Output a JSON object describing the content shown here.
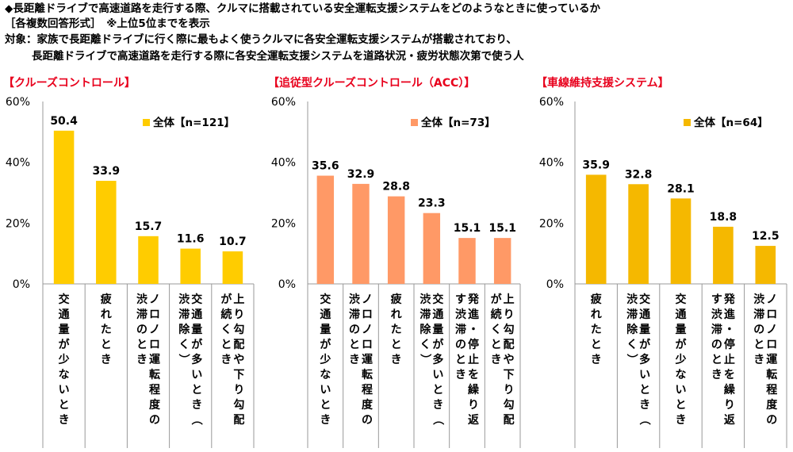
{
  "header": {
    "line1": "◆長距離ドライブで高速道路を走行する際、クルマに搭載されている安全運転支援システムをどのようなときに使っているか",
    "line2": "［各複数回答形式］　※上位5位までを表示",
    "line3": "対象：家族で長距離ドライブに行く際に最もよく使うクルマに各安全運転支援システムが搭載されており、",
    "line4": "長距離ドライブで高速道路を走行する際に各安全運転支援システムを道路状況・疲労状態次第で使う人"
  },
  "chart_data": [
    {
      "type": "bar",
      "title": "【クルーズコントロール】",
      "legend": "全体【n=121】",
      "color": "#FFCC00",
      "y_ticks": [
        "60%",
        "40%",
        "20%",
        "0%"
      ],
      "ylim": [
        0,
        60
      ],
      "categories": [
        "交通量が少ないとき",
        "疲れたとき",
        "ノロノロ運転程度の渋滞のとき",
        "交通量が多いとき（渋滞除く）",
        "上り勾配や下り勾配が続くとき"
      ],
      "values": [
        50.4,
        33.9,
        15.7,
        11.6,
        10.7
      ],
      "labels": [
        "50.4",
        "33.9",
        "15.7",
        "11.6",
        "10.7"
      ]
    },
    {
      "type": "bar",
      "title": "【追従型クルーズコントロール（ACC）】",
      "legend": "全体【n=73】",
      "color": "#FF9966",
      "y_ticks": [
        "60%",
        "40%",
        "20%",
        "0%"
      ],
      "ylim": [
        0,
        60
      ],
      "categories": [
        "交通量が少ないとき",
        "ノロノロ運転程度の渋滞のとき",
        "疲れたとき",
        "交通量が多いとき（渋滞除く）",
        "発進・停止を繰り返す渋滞のとき",
        "上り勾配や下り勾配が続くとき"
      ],
      "values": [
        35.6,
        32.9,
        28.8,
        23.3,
        15.1,
        15.1
      ],
      "labels": [
        "35.6",
        "32.9",
        "28.8",
        "23.3",
        "15.1",
        "15.1"
      ]
    },
    {
      "type": "bar",
      "title": "【車線維持支援システム】",
      "legend": "全体【n=64】",
      "color": "#F5B800",
      "y_ticks": [
        "60%",
        "40%",
        "20%",
        "0%"
      ],
      "ylim": [
        0,
        60
      ],
      "categories": [
        "疲れたとき",
        "交通量が多いとき（渋滞除く）",
        "交通量が少ないとき",
        "発進・停止を繰り返す渋滞のとき",
        "ノロノロ運転程度の渋滞のとき"
      ],
      "values": [
        35.9,
        32.8,
        28.1,
        18.8,
        12.5
      ],
      "labels": [
        "35.9",
        "32.8",
        "28.1",
        "18.8",
        "12.5"
      ]
    }
  ]
}
